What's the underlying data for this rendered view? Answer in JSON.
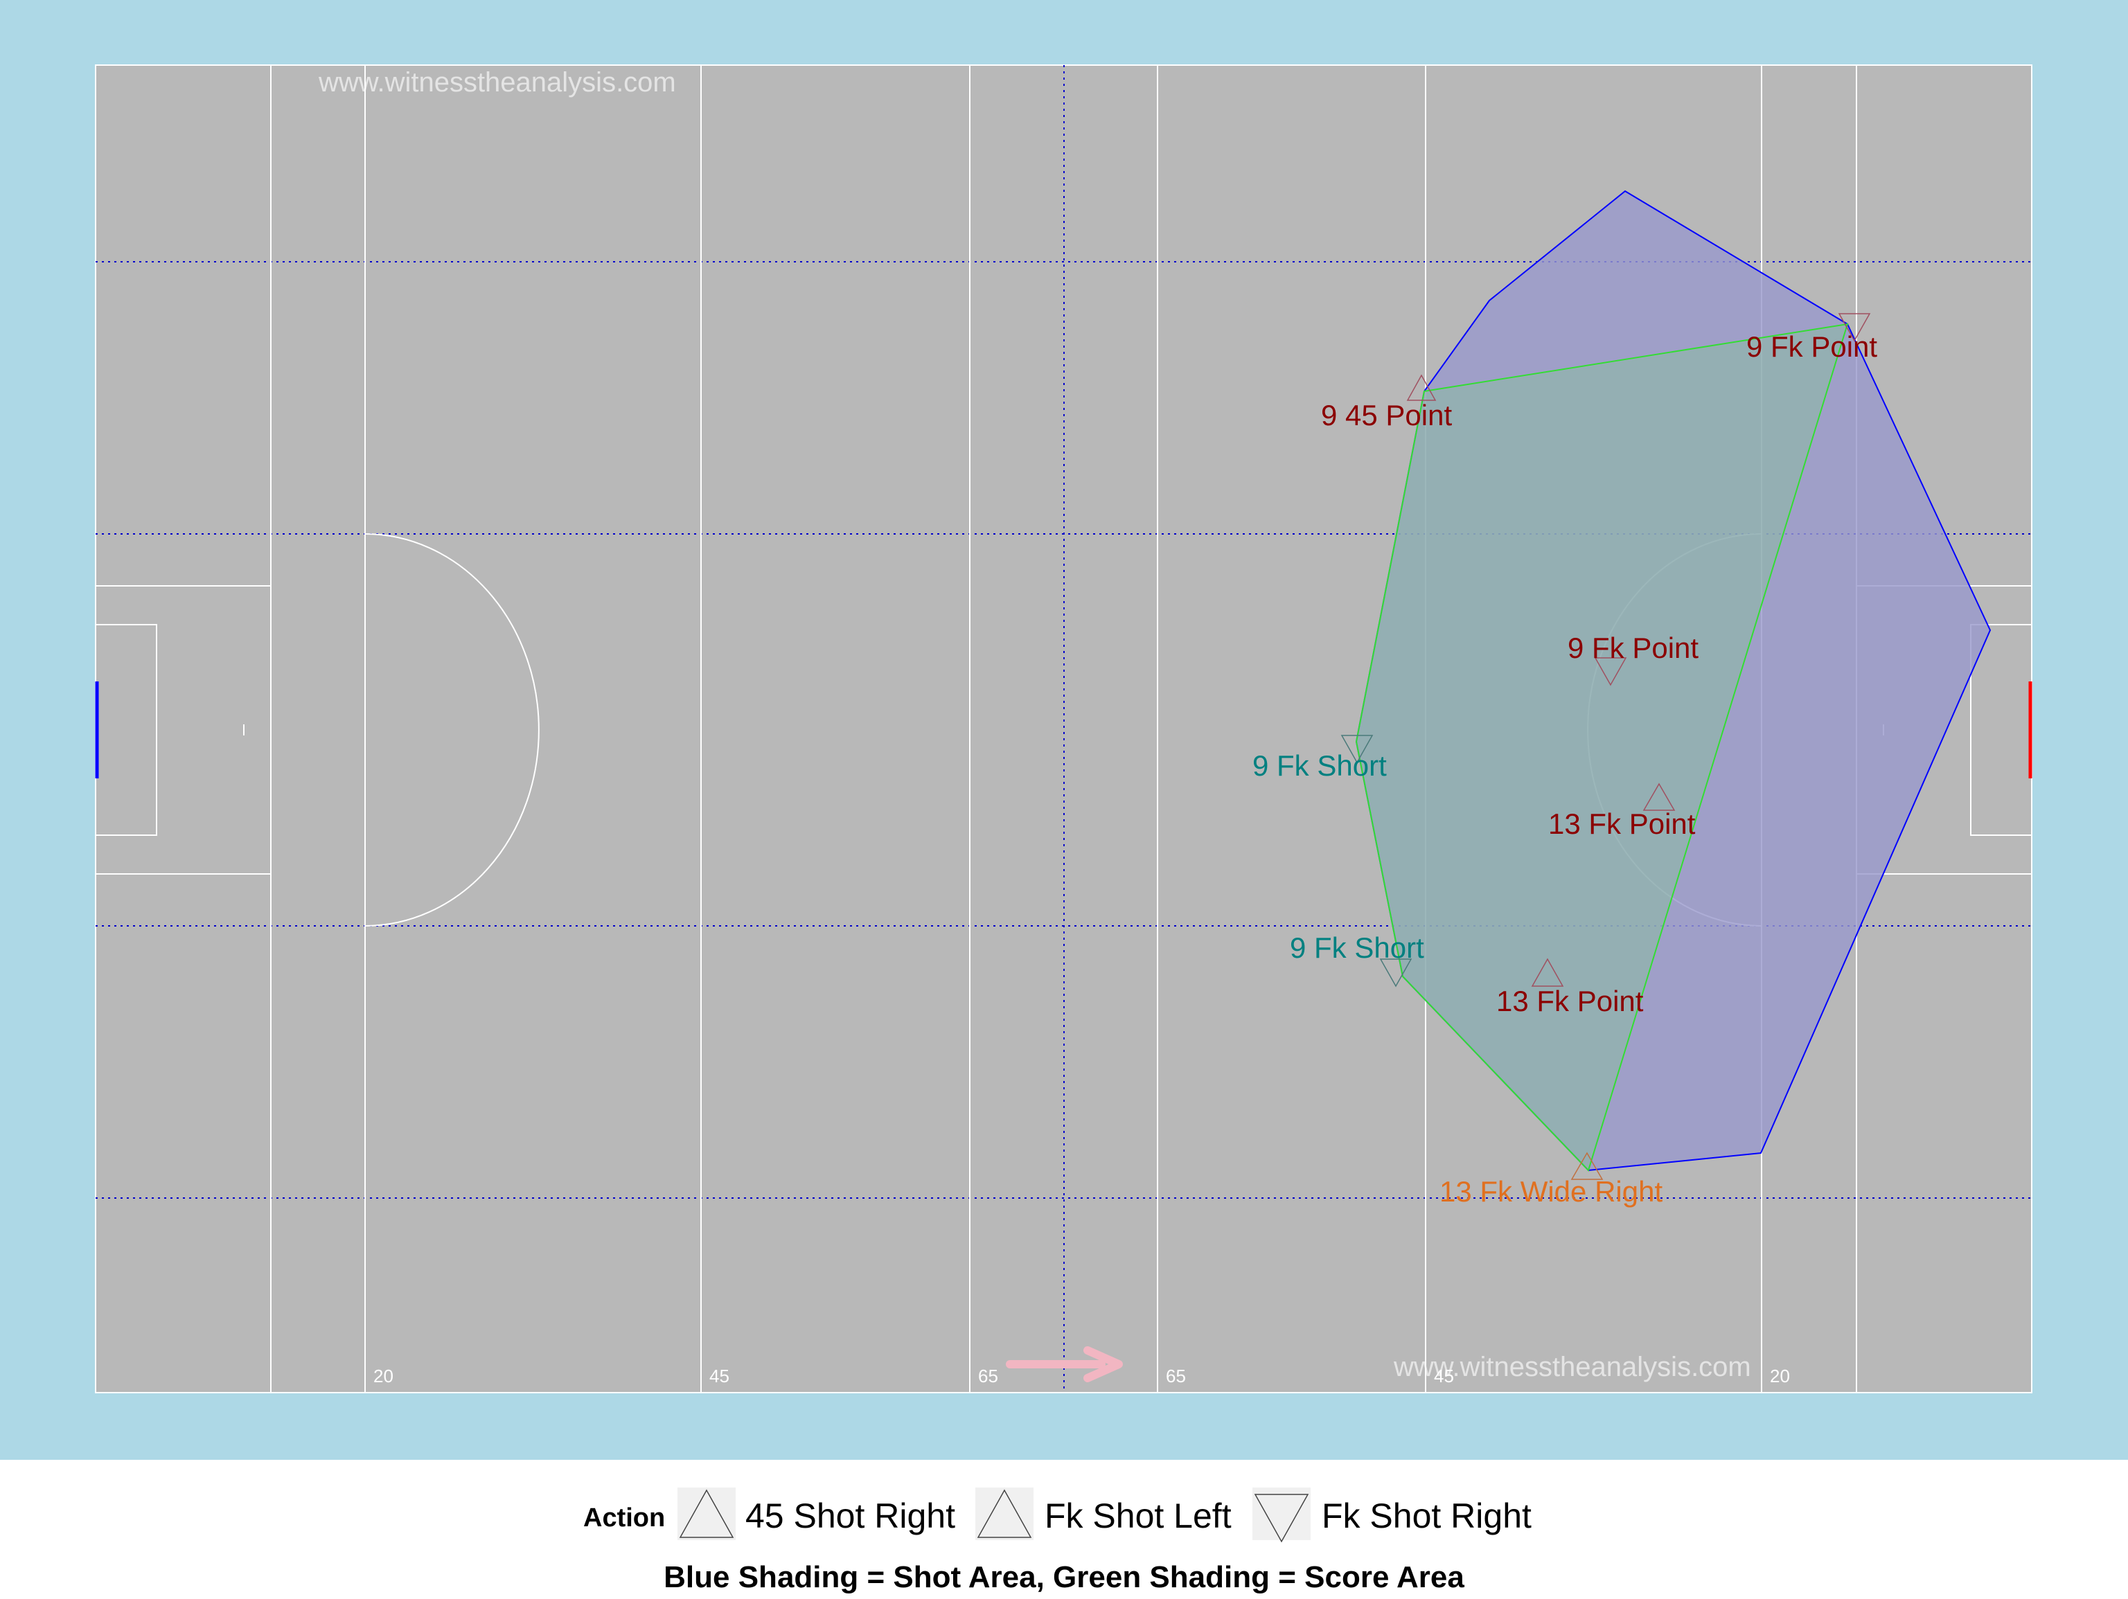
{
  "watermarks": [
    "www.witnesstheanalysis.com",
    "www.witnesstheanalysis.com"
  ],
  "distance_labels": [
    "20",
    "45",
    "65",
    "65",
    "45",
    "20"
  ],
  "colors": {
    "outer_background": "#add8e6",
    "pitch": "#b8b8b8",
    "pitch_lines": "#ffffff",
    "zone_lines": "#0000cc",
    "shot_area_fill": "#9999cc",
    "shot_area_stroke": "#0000ff",
    "score_area_fill": "#8fb29e",
    "score_area_stroke": "#33dd33",
    "attack_arrow": "#f2b6c2",
    "goal_left": "#0000ff",
    "goal_right": "#ff0000",
    "label_point": "#8b0000",
    "label_short": "#008080",
    "label_wide": "#e07020"
  },
  "chart_data": {
    "type": "scatter",
    "pitch": "gaelic football pitch, attacking left to right",
    "series": [
      {
        "name": "45 Shot Right",
        "marker": "triangle-up"
      },
      {
        "name": "Fk Shot Left",
        "marker": "triangle-up"
      },
      {
        "name": "Fk Shot Right",
        "marker": "triangle-down"
      }
    ],
    "events": [
      {
        "label": "9 45 Point",
        "action": "45 Shot Right",
        "outcome": "Point"
      },
      {
        "label": "9 Fk Point",
        "action": "Fk Shot Right",
        "outcome": "Point"
      },
      {
        "label": "9 Fk Point",
        "action": "Fk Shot Right",
        "outcome": "Point"
      },
      {
        "label": "9 Fk Short",
        "action": "Fk Shot Right",
        "outcome": "Short"
      },
      {
        "label": "13 Fk Point",
        "action": "Fk Shot Left",
        "outcome": "Point"
      },
      {
        "label": "9 Fk Short",
        "action": "Fk Shot Right",
        "outcome": "Short"
      },
      {
        "label": "13 Fk Point",
        "action": "Fk Shot Left",
        "outcome": "Point"
      },
      {
        "label": "13 Fk Wide Right",
        "action": "Fk Shot Left",
        "outcome": "Wide Right"
      }
    ],
    "legend": {
      "title": "Action",
      "items": [
        "45 Shot Right",
        "Fk Shot Left",
        "Fk Shot Right"
      ],
      "placement": "bottom"
    },
    "caption": "Blue Shading = Shot Area, Green Shading = Score Area"
  }
}
